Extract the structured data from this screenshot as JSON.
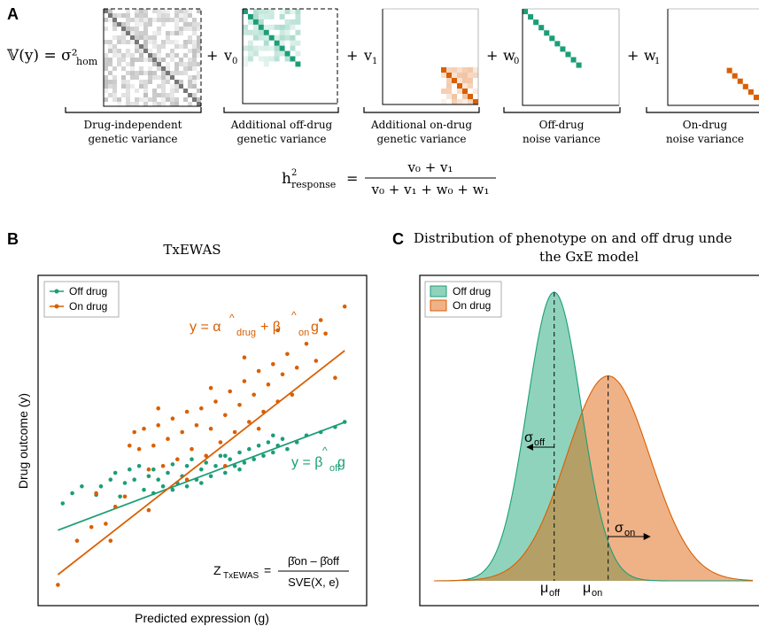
{
  "panels": {
    "A": {
      "letter": "A",
      "equation": {
        "lhs": "𝕍(y) = σ²",
        "lhs_sub": "hom",
        "plus": "+"
      },
      "terms": [
        {
          "coef": "",
          "label_line1": "Drug-independent",
          "label_line2": "genetic variance"
        },
        {
          "coef": "v",
          "coef_sub": "0",
          "label_line1": "Additional off-drug",
          "label_line2": "genetic variance"
        },
        {
          "coef": "v",
          "coef_sub": "1",
          "label_line1": "Additional on-drug",
          "label_line2": "genetic variance"
        },
        {
          "coef": "w",
          "coef_sub": "0",
          "label_line1": "Off-drug",
          "label_line2": "noise variance"
        },
        {
          "coef": "w",
          "coef_sub": "1",
          "label_line1": "On-drug",
          "label_line2": "noise variance"
        }
      ],
      "heritability": {
        "lhs": "h",
        "lhs_sup": "2",
        "lhs_sub": "response",
        "equals": "=",
        "numerator": "v₀ + v₁",
        "denominator": "v₀ + v₁ + w₀ + w₁"
      }
    },
    "B": {
      "letter": "B",
      "title": "TxEWAS",
      "xlabel": "Predicted expression (g)",
      "ylabel": "Drug outcome (y)",
      "legend": [
        "Off drug",
        "On drug"
      ],
      "eq_on": "y = α̂drug + β̂ong",
      "eq_on_parts": {
        "y": "y = α",
        "hat": "^",
        "sub1": "drug",
        "plus": " + β",
        "sub2": "on",
        "g": "g"
      },
      "eq_off_parts": {
        "y": "y = β",
        "sub": "off",
        "g": "g"
      },
      "z_parts": {
        "z": "Z",
        "zsub": "TxEWAS",
        "eq": "=",
        "num": "β̂on – β̂off",
        "den": "SVE(X, e)"
      }
    },
    "C": {
      "letter": "C",
      "title_line1": "Distribution of phenotype on and off drug unde",
      "title_line2": "the GxE model",
      "legend": [
        "Off drug",
        "On drug"
      ],
      "sigma_off": "σ",
      "sigma_off_sub": "off",
      "sigma_on": "σ",
      "sigma_on_sub": "on",
      "mu_off": "μ",
      "mu_off_sub": "off",
      "mu_on": "μ",
      "mu_on_sub": "on"
    }
  },
  "colors": {
    "off": "#1b9e77",
    "on": "#d95f02",
    "off_fill": "#8fd3bd",
    "on_fill": "#efb287",
    "overlap": "#b4a066",
    "gray": "#777777"
  },
  "chart_data": [
    {
      "type": "scatter",
      "title": "TxEWAS",
      "xlabel": "Predicted expression (g)",
      "ylabel": "Drug outcome (y)",
      "grid": false,
      "legend_position": "top-left",
      "series": [
        {
          "name": "Off drug",
          "fit": {
            "slope": 0.53,
            "intercept": 0.0
          },
          "points": [
            [
              -2.9,
              -0.8
            ],
            [
              -2.7,
              -0.5
            ],
            [
              -2.5,
              -0.3
            ],
            [
              -2.2,
              -0.55
            ],
            [
              -2.1,
              -0.3
            ],
            [
              -1.9,
              -0.1
            ],
            [
              -1.8,
              0.1
            ],
            [
              -1.6,
              -0.2
            ],
            [
              -1.5,
              0.2
            ],
            [
              -1.4,
              -0.1
            ],
            [
              -1.3,
              0.3
            ],
            [
              -1.2,
              -0.4
            ],
            [
              -1.1,
              0.0
            ],
            [
              -1.0,
              0.2
            ],
            [
              -0.9,
              -0.1
            ],
            [
              -0.8,
              -0.3
            ],
            [
              -0.7,
              0.1
            ],
            [
              -0.6,
              0.35
            ],
            [
              -0.5,
              -0.2
            ],
            [
              -0.4,
              0.0
            ],
            [
              -0.3,
              0.3
            ],
            [
              -0.2,
              0.5
            ],
            [
              -0.1,
              -0.1
            ],
            [
              0.0,
              0.2
            ],
            [
              0.1,
              0.4
            ],
            [
              0.2,
              0.0
            ],
            [
              0.3,
              0.3
            ],
            [
              0.4,
              0.6
            ],
            [
              0.5,
              0.1
            ],
            [
              0.6,
              0.5
            ],
            [
              0.7,
              0.3
            ],
            [
              0.8,
              0.7
            ],
            [
              0.9,
              0.4
            ],
            [
              1.0,
              0.8
            ],
            [
              1.1,
              0.5
            ],
            [
              1.2,
              0.9
            ],
            [
              1.3,
              0.6
            ],
            [
              1.4,
              1.0
            ],
            [
              1.5,
              0.7
            ],
            [
              1.6,
              0.9
            ],
            [
              1.7,
              1.1
            ],
            [
              1.8,
              0.8
            ],
            [
              2.0,
              1.0
            ],
            [
              2.2,
              1.2
            ],
            [
              2.5,
              1.3
            ],
            [
              2.8,
              1.45
            ],
            [
              3.0,
              1.6
            ],
            [
              -1.7,
              -0.6
            ],
            [
              -0.6,
              -0.4
            ],
            [
              0.5,
              0.6
            ],
            [
              1.5,
              1.2
            ],
            [
              0.0,
              -0.2
            ],
            [
              -1.0,
              -0.5
            ],
            [
              0.8,
              0.2
            ],
            [
              -0.3,
              -0.3
            ]
          ]
        },
        {
          "name": "On drug",
          "fit": {
            "slope": 1.1,
            "intercept": 0.4
          },
          "points": [
            [
              -3.0,
              -3.2
            ],
            [
              -2.6,
              -1.9
            ],
            [
              -2.3,
              -1.5
            ],
            [
              -2.0,
              -1.4
            ],
            [
              -1.8,
              -0.9
            ],
            [
              -1.6,
              -0.6
            ],
            [
              -1.5,
              0.9
            ],
            [
              -1.4,
              1.3
            ],
            [
              -1.3,
              0.8
            ],
            [
              -1.2,
              1.4
            ],
            [
              -1.1,
              0.2
            ],
            [
              -1.0,
              0.9
            ],
            [
              -0.9,
              1.5
            ],
            [
              -0.8,
              0.3
            ],
            [
              -0.7,
              1.1
            ],
            [
              -0.6,
              1.7
            ],
            [
              -0.5,
              0.5
            ],
            [
              -0.4,
              1.3
            ],
            [
              -0.3,
              1.9
            ],
            [
              -0.2,
              0.8
            ],
            [
              -0.1,
              1.5
            ],
            [
              0.0,
              2.0
            ],
            [
              0.1,
              0.6
            ],
            [
              0.2,
              1.4
            ],
            [
              0.3,
              2.2
            ],
            [
              0.4,
              1.0
            ],
            [
              0.5,
              1.8
            ],
            [
              0.6,
              2.5
            ],
            [
              0.7,
              1.3
            ],
            [
              0.8,
              2.1
            ],
            [
              0.9,
              2.8
            ],
            [
              1.0,
              1.6
            ],
            [
              1.1,
              2.4
            ],
            [
              1.2,
              3.1
            ],
            [
              1.3,
              1.9
            ],
            [
              1.4,
              2.7
            ],
            [
              1.5,
              3.3
            ],
            [
              1.6,
              2.2
            ],
            [
              1.7,
              3.0
            ],
            [
              1.8,
              3.6
            ],
            [
              1.9,
              2.4
            ],
            [
              2.0,
              3.2
            ],
            [
              2.2,
              3.9
            ],
            [
              2.4,
              3.4
            ],
            [
              2.6,
              4.2
            ],
            [
              2.8,
              2.9
            ],
            [
              3.0,
              5.0
            ],
            [
              -1.9,
              -1.9
            ],
            [
              -1.1,
              -1.0
            ],
            [
              -0.3,
              -0.1
            ],
            [
              0.5,
              0.3
            ],
            [
              1.2,
              1.4
            ],
            [
              1.6,
              4.3
            ],
            [
              2.5,
              4.6
            ],
            [
              -0.9,
              2.0
            ],
            [
              0.2,
              2.6
            ],
            [
              0.9,
              3.5
            ],
            [
              -2.2,
              -0.5
            ]
          ]
        }
      ]
    },
    {
      "type": "area",
      "title": "Distribution of phenotype on and off drug unde the GxE model",
      "legend_position": "top-left",
      "series": [
        {
          "name": "Off drug",
          "mean": -0.55,
          "sd": 0.55,
          "peak": 1.0
        },
        {
          "name": "On drug",
          "mean": 0.55,
          "sd": 0.85,
          "peak": 0.71
        }
      ]
    }
  ]
}
